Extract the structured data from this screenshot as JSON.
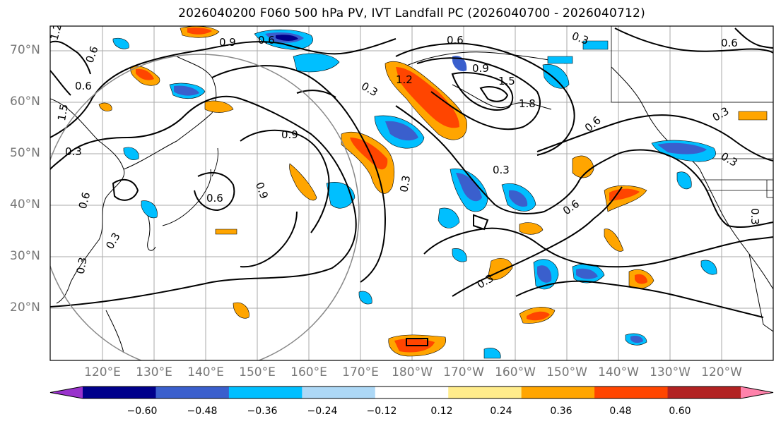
{
  "title": "2026040200 F060 500 hPa PV, IVT Landfall PC (2026040700 - 2026040712)",
  "lat_labels": [
    "70°N",
    "60°N",
    "50°N",
    "40°N",
    "30°N",
    "20°N"
  ],
  "lon_labels": [
    "120°E",
    "130°E",
    "140°E",
    "150°E",
    "160°E",
    "170°E",
    "180°W",
    "170°W",
    "160°W",
    "150°W",
    "140°W",
    "130°W",
    "120°W"
  ],
  "contour_labels": [
    "0.9",
    "0.6",
    "0.3",
    "0.6",
    "0.9",
    "0.3",
    "0.6",
    "0.9",
    "0.3",
    "0.9",
    "0.6",
    "0.6",
    "0.3",
    "0.3",
    "0.6",
    "0.3",
    "0.6",
    "0.3",
    "0.6",
    "0.3",
    "1.5",
    "1.2",
    "1.5",
    "1.8",
    "1.2",
    "0.3",
    "0.6",
    "0.3",
    "0.3"
  ],
  "colorbar": {
    "ticks": [
      "−0.60",
      "−0.48",
      "−0.36",
      "−0.24",
      "−0.12",
      "0.12",
      "0.24",
      "0.36",
      "0.48",
      "0.60"
    ],
    "colors": [
      "#9932cc",
      "#00008b",
      "#3a5fcd",
      "#00bfff",
      "#add8f6",
      "#ffffff",
      "#ffec8b",
      "#ffa500",
      "#ff4500",
      "#b22222",
      "#ff82ab"
    ]
  }
}
